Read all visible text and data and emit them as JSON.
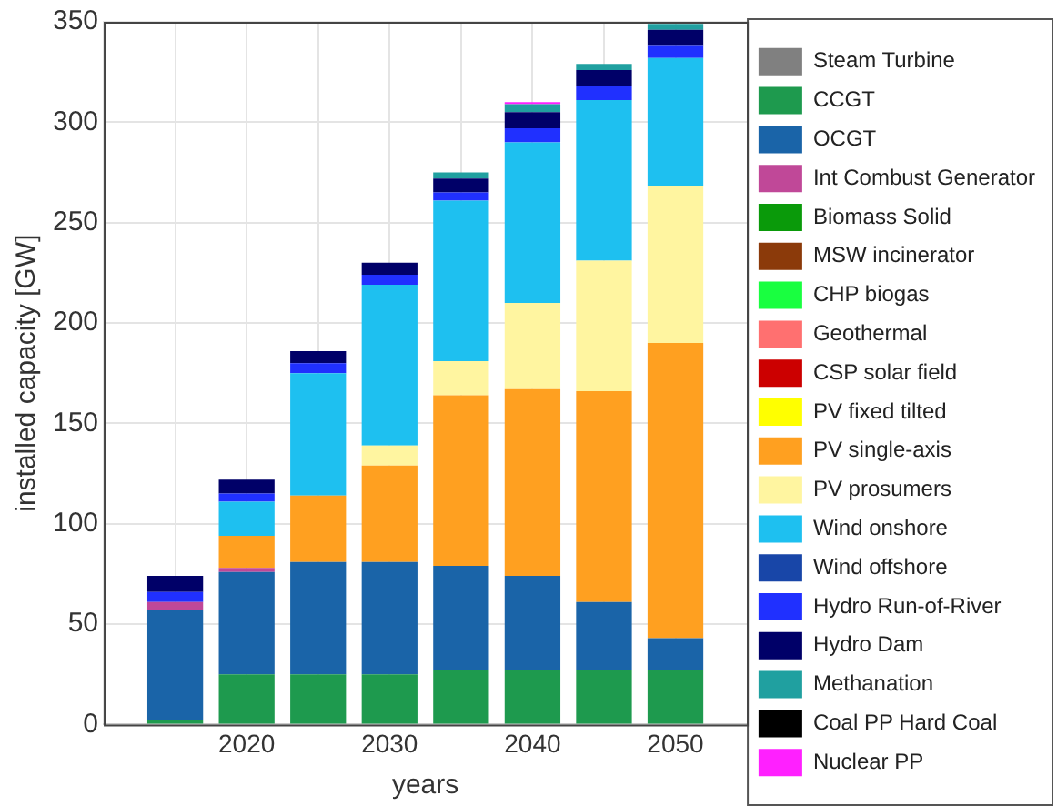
{
  "chart_data": {
    "type": "bar",
    "stacked": true,
    "xlabel": "years",
    "ylabel": "installed capacity [GW]",
    "x": [
      2015,
      2020,
      2025,
      2030,
      2035,
      2040,
      2045,
      2050
    ],
    "xlim": [
      2010,
      2055
    ],
    "xticks": [
      {
        "value": 2015,
        "label": null
      },
      2020,
      {
        "value": 2025,
        "label": null
      },
      2030,
      {
        "value": 2035,
        "label": null
      },
      2040,
      {
        "value": 2045,
        "label": null
      },
      2050
    ],
    "ylim": [
      0,
      350
    ],
    "yticks": [
      0,
      50,
      100,
      150,
      200,
      250,
      300,
      350
    ],
    "grid": true,
    "legend": "right",
    "series": [
      {
        "name": "Steam Turbine",
        "color": "#808080",
        "values": [
          0,
          0,
          0,
          0,
          0,
          0,
          0,
          0
        ]
      },
      {
        "name": "CCGT",
        "color": "#1e9a4e",
        "values": [
          2,
          25,
          25,
          25,
          27,
          27,
          27,
          27
        ]
      },
      {
        "name": "OCGT",
        "color": "#1a64a8",
        "values": [
          55,
          51,
          56,
          56,
          52,
          47,
          34,
          16
        ]
      },
      {
        "name": "Int Combust Generator",
        "color": "#c04898",
        "values": [
          4,
          2,
          0,
          0,
          0,
          0,
          0,
          0
        ]
      },
      {
        "name": "Biomass Solid",
        "color": "#0a9a0a",
        "values": [
          0,
          0,
          0,
          0,
          0,
          0,
          0,
          0
        ]
      },
      {
        "name": "MSW incinerator",
        "color": "#8b3a0a",
        "values": [
          0,
          0,
          0,
          0,
          0,
          0,
          0,
          0
        ]
      },
      {
        "name": "CHP biogas",
        "color": "#19ff40",
        "values": [
          0,
          0,
          0,
          0,
          0,
          0,
          0,
          0
        ]
      },
      {
        "name": "Geothermal",
        "color": "#ff7070",
        "values": [
          0,
          0,
          0,
          0,
          0,
          0,
          0,
          0
        ]
      },
      {
        "name": "CSP solar field",
        "color": "#cc0000",
        "values": [
          0,
          0,
          0,
          0,
          0,
          0,
          0,
          0
        ]
      },
      {
        "name": "PV fixed tilted",
        "color": "#ffff00",
        "values": [
          0,
          0,
          0,
          0,
          0,
          0,
          0,
          0
        ]
      },
      {
        "name": "PV single-axis",
        "color": "#ffa020",
        "values": [
          0,
          16,
          33,
          48,
          85,
          93,
          105,
          147
        ]
      },
      {
        "name": "PV prosumers",
        "color": "#fff5a0",
        "values": [
          0,
          0,
          0,
          10,
          17,
          43,
          65,
          78
        ]
      },
      {
        "name": "Wind onshore",
        "color": "#1ec0f0",
        "values": [
          0,
          17,
          61,
          80,
          80,
          80,
          80,
          64
        ]
      },
      {
        "name": "Wind offshore",
        "color": "#1846a8",
        "values": [
          0,
          0,
          0,
          0,
          0,
          0,
          0,
          0
        ]
      },
      {
        "name": "Hydro Run-of-River",
        "color": "#2030ff",
        "values": [
          5,
          4,
          5,
          5,
          4,
          7,
          7,
          6
        ]
      },
      {
        "name": "Hydro Dam",
        "color": "#000068",
        "values": [
          8,
          7,
          6,
          6,
          7,
          8,
          8,
          8
        ]
      },
      {
        "name": "Methanation",
        "color": "#20a0a0",
        "values": [
          0,
          0,
          0,
          0,
          3,
          4,
          3,
          3
        ]
      },
      {
        "name": "Coal PP Hard Coal",
        "color": "#000000",
        "values": [
          0,
          0,
          0,
          0,
          0,
          0,
          0,
          0
        ]
      },
      {
        "name": "Nuclear PP",
        "color": "#ff20ff",
        "values": [
          0,
          0,
          0,
          0,
          0,
          1,
          0,
          0
        ]
      }
    ]
  }
}
